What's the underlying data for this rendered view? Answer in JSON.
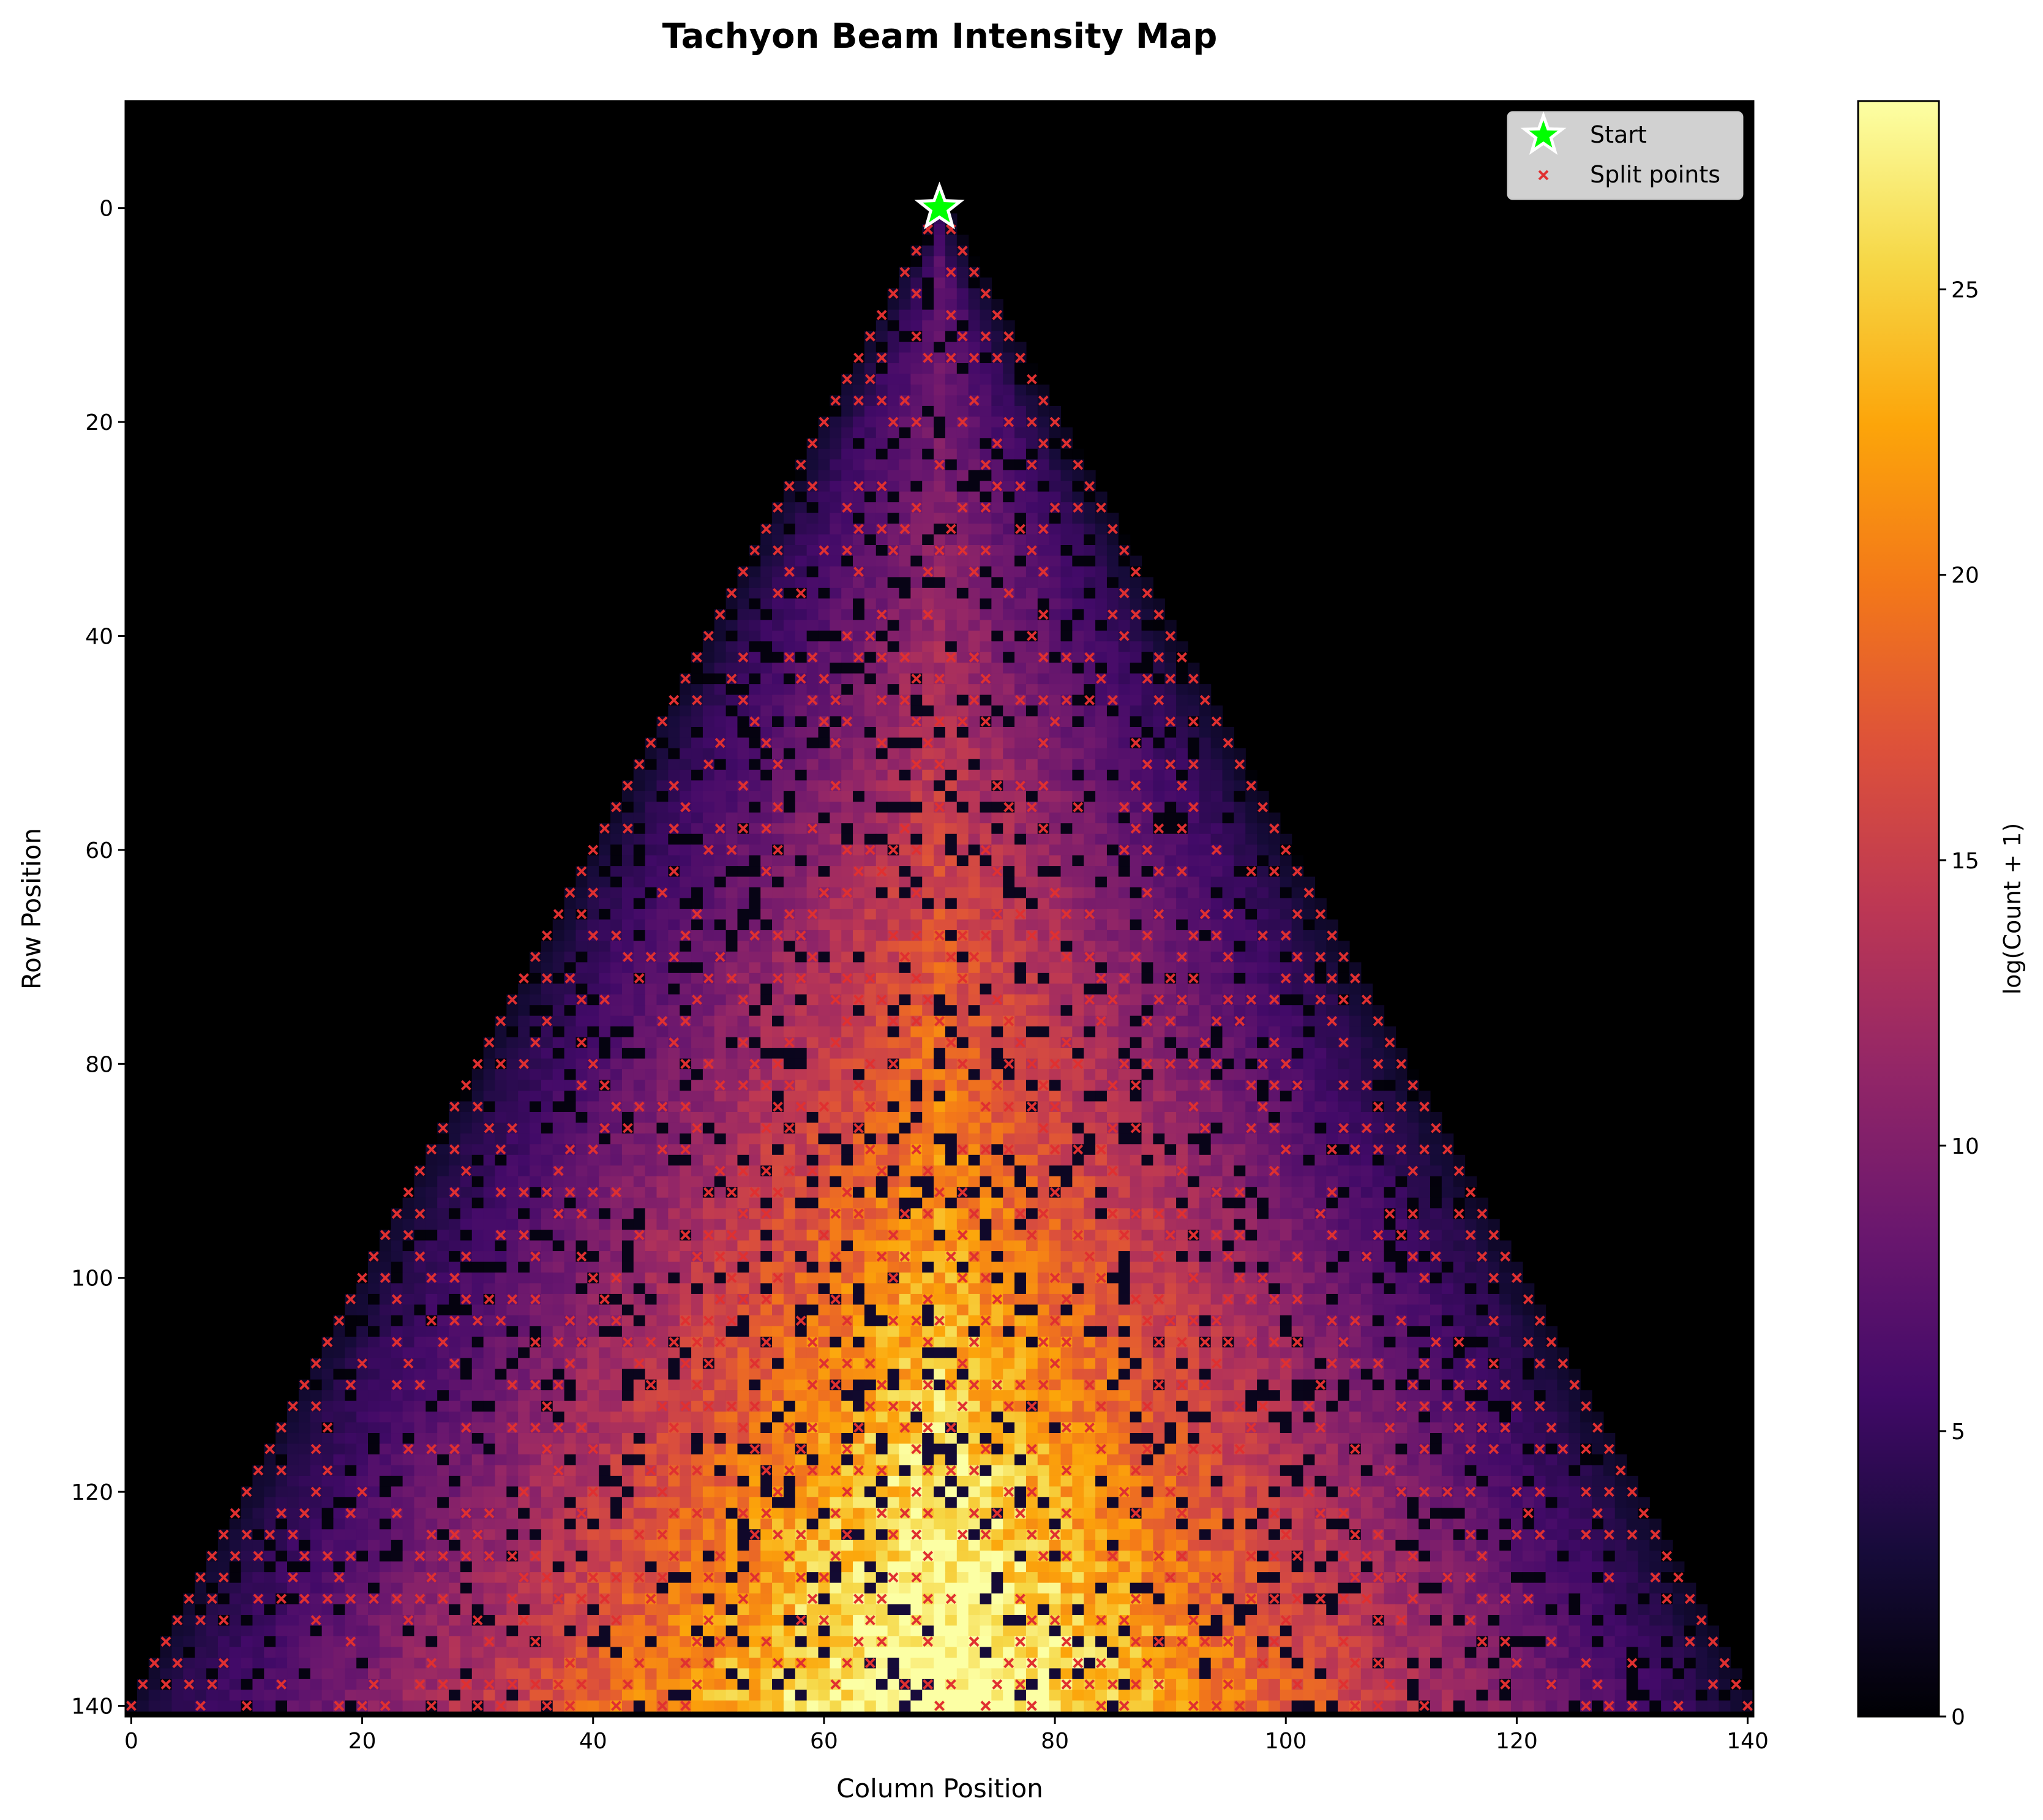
{
  "chart_data": {
    "type": "heatmap",
    "title": "Tachyon Beam Intensity Map",
    "xlabel": "Column Position",
    "ylabel": "Row Position",
    "xlim": [
      -0.5,
      140.5
    ],
    "ylim": [
      141.0,
      -10.0
    ],
    "y_inverted": true,
    "xticks": [
      0,
      20,
      40,
      60,
      80,
      100,
      120,
      140
    ],
    "yticks": [
      0,
      20,
      40,
      60,
      80,
      100,
      120,
      140
    ],
    "colormap": "inferno",
    "colorbar": {
      "label": "log(Count + 1)",
      "range": [
        0,
        28.3
      ],
      "ticks": [
        0,
        5,
        10,
        15,
        20,
        25
      ]
    },
    "legend": {
      "placement": "top-right",
      "entries": [
        {
          "label": "Start",
          "marker": "star",
          "color": "#00ff00"
        },
        {
          "label": "Split points",
          "marker": "x",
          "color": "#e03030"
        }
      ]
    },
    "start_point": {
      "x": 70,
      "y": 0
    },
    "triangle_apex": {
      "x": 70,
      "y": 0
    },
    "triangle_base": {
      "left_x": 0,
      "right_x": 140,
      "y": 140
    },
    "split_point_row_spacing": 2,
    "grid": false
  },
  "colors": {
    "background": "#000000",
    "split_marker": "#e03030",
    "start_marker": "#00ff00"
  }
}
